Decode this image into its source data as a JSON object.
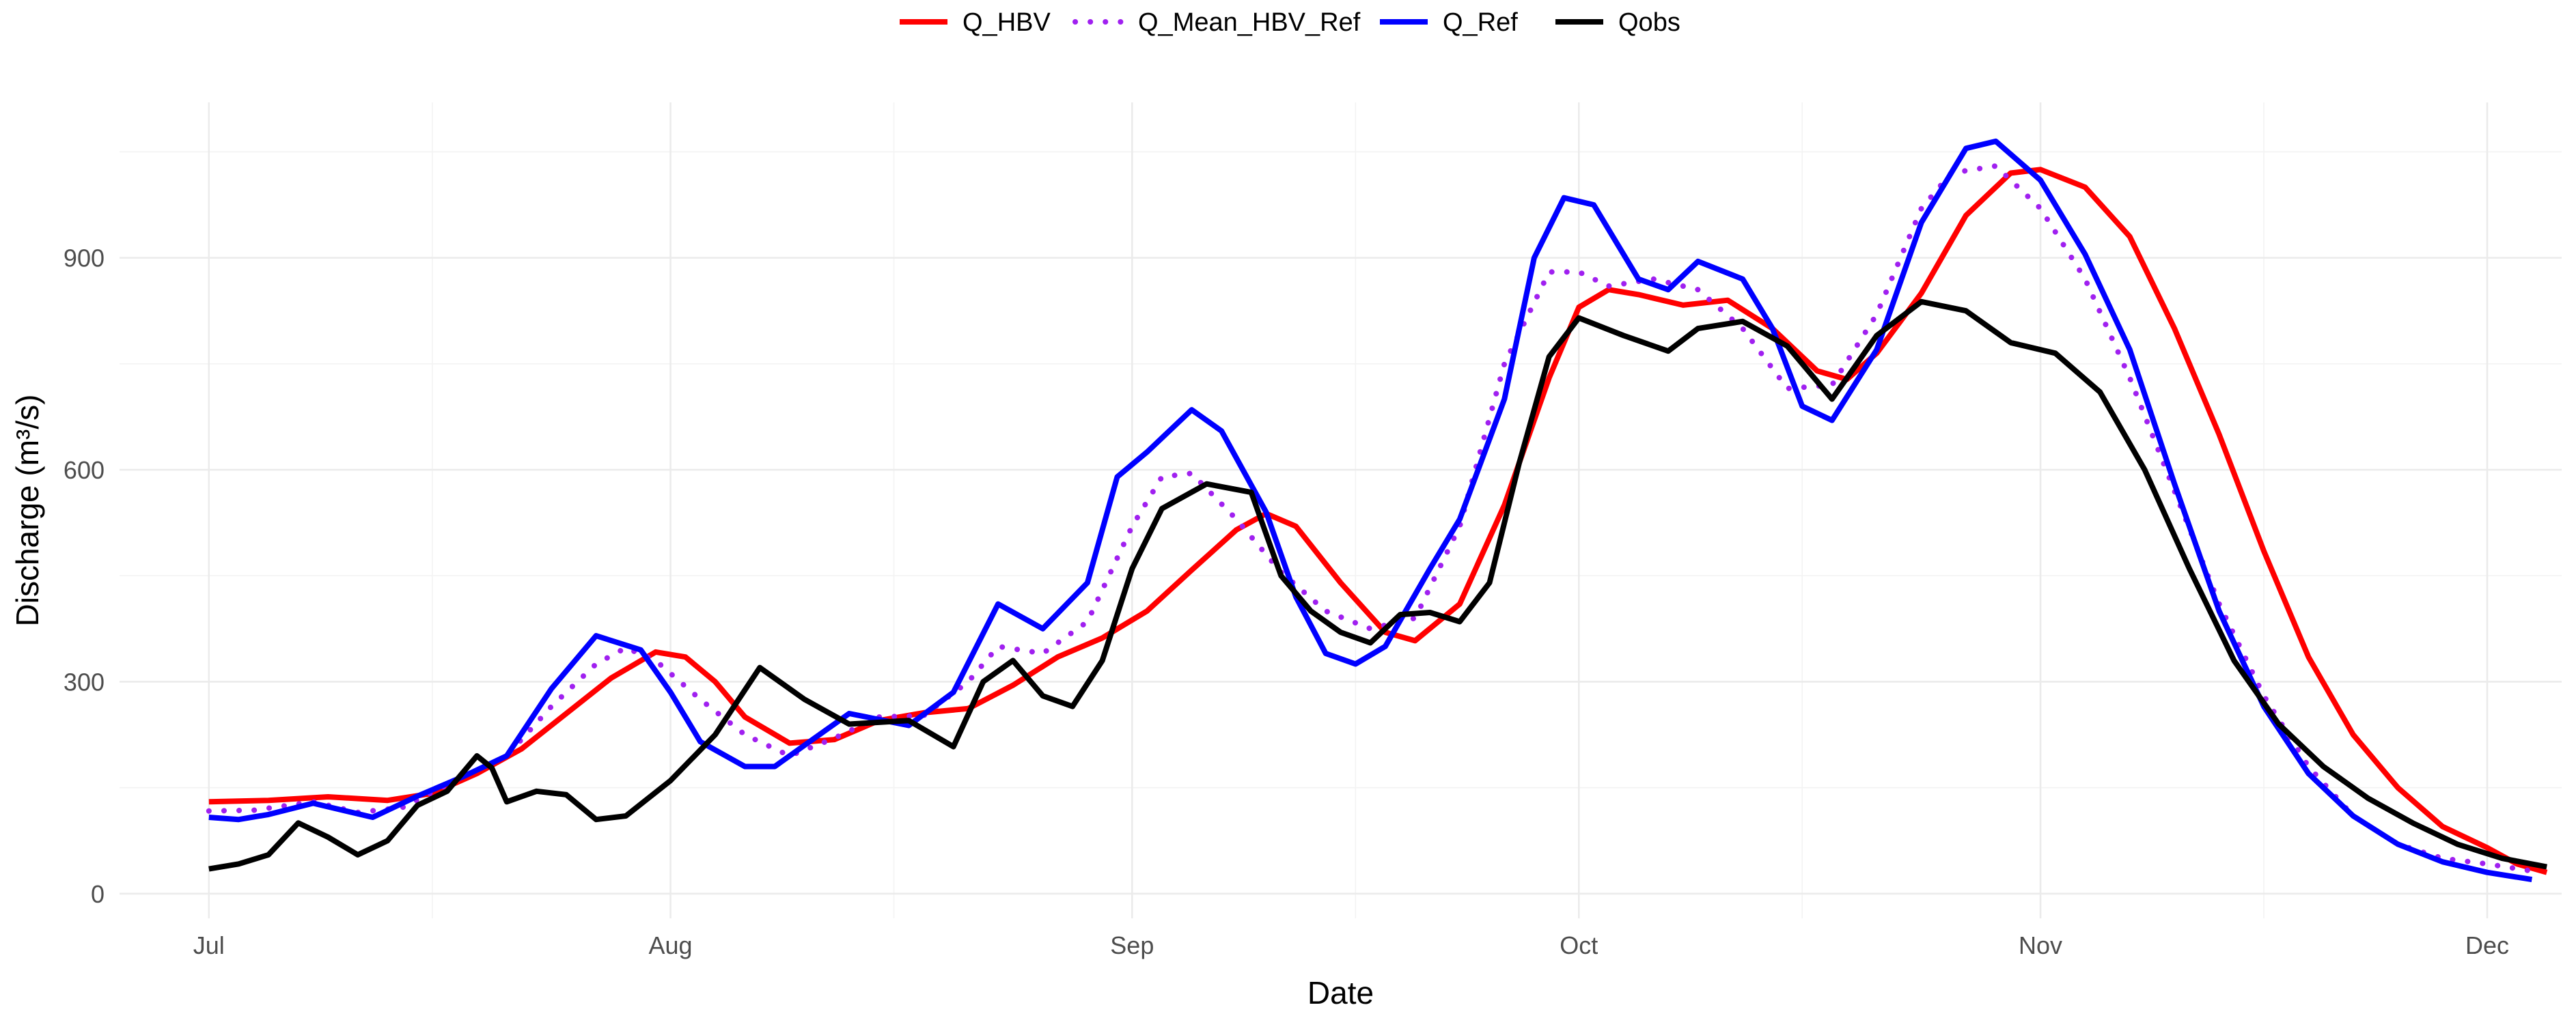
{
  "chart_data": {
    "type": "line",
    "xlabel": "Date",
    "ylabel": "Discharge (m³/s)",
    "x_axis": {
      "kind": "date",
      "range": [
        "2023-06-25",
        "2023-12-06"
      ],
      "ticks": [
        {
          "date": "2023-07-01",
          "label": "Jul"
        },
        {
          "date": "2023-08-01",
          "label": "Aug"
        },
        {
          "date": "2023-09-01",
          "label": "Sep"
        },
        {
          "date": "2023-10-01",
          "label": "Oct"
        },
        {
          "date": "2023-11-01",
          "label": "Nov"
        },
        {
          "date": "2023-12-01",
          "label": "Dec"
        }
      ],
      "minor_ticks": [
        "2023-07-16",
        "2023-08-16",
        "2023-09-16",
        "2023-10-16",
        "2023-11-16"
      ]
    },
    "y_axis": {
      "range": [
        -35,
        1120
      ],
      "ticks": [
        0,
        300,
        600,
        900
      ],
      "minor_ticks": [
        150,
        450,
        750,
        1050
      ]
    },
    "grid": true,
    "legend_position": "top",
    "series": [
      {
        "name": "Q_HBV",
        "color": "#ff0000",
        "style": "solid",
        "points": [
          [
            "2023-07-01",
            130
          ],
          [
            "2023-07-05",
            132
          ],
          [
            "2023-07-09",
            137
          ],
          [
            "2023-07-13",
            132
          ],
          [
            "2023-07-16",
            142
          ],
          [
            "2023-07-19",
            170
          ],
          [
            "2023-07-22",
            205
          ],
          [
            "2023-07-25",
            255
          ],
          [
            "2023-07-28",
            305
          ],
          [
            "2023-07-31",
            342
          ],
          [
            "2023-08-02",
            335
          ],
          [
            "2023-08-04",
            300
          ],
          [
            "2023-08-06",
            250
          ],
          [
            "2023-08-09",
            213
          ],
          [
            "2023-08-12",
            218
          ],
          [
            "2023-08-15",
            245
          ],
          [
            "2023-08-18",
            256
          ],
          [
            "2023-08-21",
            262
          ],
          [
            "2023-08-24",
            295
          ],
          [
            "2023-08-27",
            335
          ],
          [
            "2023-08-30",
            362
          ],
          [
            "2023-09-02",
            400
          ],
          [
            "2023-09-05",
            458
          ],
          [
            "2023-09-08",
            515
          ],
          [
            "2023-09-10",
            538
          ],
          [
            "2023-09-12",
            520
          ],
          [
            "2023-09-15",
            440
          ],
          [
            "2023-09-18",
            370
          ],
          [
            "2023-09-20",
            358
          ],
          [
            "2023-09-23",
            410
          ],
          [
            "2023-09-26",
            550
          ],
          [
            "2023-09-29",
            730
          ],
          [
            "2023-10-01",
            830
          ],
          [
            "2023-10-03",
            855
          ],
          [
            "2023-10-05",
            848
          ],
          [
            "2023-10-08",
            833
          ],
          [
            "2023-10-11",
            840
          ],
          [
            "2023-10-14",
            800
          ],
          [
            "2023-10-17",
            740
          ],
          [
            "2023-10-19",
            728
          ],
          [
            "2023-10-21",
            765
          ],
          [
            "2023-10-24",
            850
          ],
          [
            "2023-10-27",
            960
          ],
          [
            "2023-10-30",
            1020
          ],
          [
            "2023-11-01",
            1025
          ],
          [
            "2023-11-04",
            1000
          ],
          [
            "2023-11-07",
            930
          ],
          [
            "2023-11-10",
            800
          ],
          [
            "2023-11-13",
            650
          ],
          [
            "2023-11-16",
            485
          ],
          [
            "2023-11-19",
            335
          ],
          [
            "2023-11-22",
            225
          ],
          [
            "2023-11-25",
            150
          ],
          [
            "2023-11-28",
            95
          ],
          [
            "2023-12-01",
            65
          ],
          [
            "2023-12-03",
            42
          ],
          [
            "2023-12-05",
            30
          ]
        ]
      },
      {
        "name": "Q_Mean_HBV_Ref",
        "color": "#a020f0",
        "style": "dotted",
        "points": [
          [
            "2023-07-01",
            117
          ],
          [
            "2023-07-04",
            118
          ],
          [
            "2023-07-08",
            130
          ],
          [
            "2023-07-11",
            115
          ],
          [
            "2023-07-14",
            122
          ],
          [
            "2023-07-18",
            165
          ],
          [
            "2023-07-21",
            195
          ],
          [
            "2023-07-24",
            265
          ],
          [
            "2023-07-27",
            325
          ],
          [
            "2023-07-29",
            348
          ],
          [
            "2023-07-31",
            330
          ],
          [
            "2023-08-03",
            275
          ],
          [
            "2023-08-06",
            225
          ],
          [
            "2023-08-09",
            195
          ],
          [
            "2023-08-12",
            220
          ],
          [
            "2023-08-15",
            250
          ],
          [
            "2023-08-18",
            252
          ],
          [
            "2023-08-21",
            300
          ],
          [
            "2023-08-23",
            350
          ],
          [
            "2023-08-26",
            340
          ],
          [
            "2023-08-29",
            385
          ],
          [
            "2023-09-01",
            520
          ],
          [
            "2023-09-03",
            590
          ],
          [
            "2023-09-05",
            595
          ],
          [
            "2023-09-08",
            530
          ],
          [
            "2023-09-11",
            455
          ],
          [
            "2023-09-14",
            400
          ],
          [
            "2023-09-17",
            375
          ],
          [
            "2023-09-20",
            390
          ],
          [
            "2023-09-23",
            520
          ],
          [
            "2023-09-26",
            750
          ],
          [
            "2023-09-29",
            880
          ],
          [
            "2023-10-01",
            880
          ],
          [
            "2023-10-03",
            860
          ],
          [
            "2023-10-06",
            870
          ],
          [
            "2023-10-09",
            855
          ],
          [
            "2023-10-12",
            800
          ],
          [
            "2023-10-15",
            715
          ],
          [
            "2023-10-18",
            720
          ],
          [
            "2023-10-21",
            820
          ],
          [
            "2023-10-24",
            970
          ],
          [
            "2023-10-26",
            1020
          ],
          [
            "2023-10-29",
            1030
          ],
          [
            "2023-11-01",
            970
          ],
          [
            "2023-11-04",
            870
          ],
          [
            "2023-11-07",
            730
          ],
          [
            "2023-11-10",
            570
          ],
          [
            "2023-11-13",
            410
          ],
          [
            "2023-11-16",
            280
          ],
          [
            "2023-11-19",
            180
          ],
          [
            "2023-11-22",
            110
          ],
          [
            "2023-11-25",
            70
          ],
          [
            "2023-11-28",
            50
          ],
          [
            "2023-12-01",
            42
          ],
          [
            "2023-12-04",
            32
          ]
        ]
      },
      {
        "name": "Q_Ref",
        "color": "#0000ff",
        "style": "solid",
        "points": [
          [
            "2023-07-01",
            108
          ],
          [
            "2023-07-03",
            105
          ],
          [
            "2023-07-05",
            112
          ],
          [
            "2023-07-08",
            128
          ],
          [
            "2023-07-12",
            108
          ],
          [
            "2023-07-15",
            138
          ],
          [
            "2023-07-18",
            165
          ],
          [
            "2023-07-21",
            195
          ],
          [
            "2023-07-24",
            290
          ],
          [
            "2023-07-27",
            365
          ],
          [
            "2023-07-30",
            345
          ],
          [
            "2023-08-01",
            285
          ],
          [
            "2023-08-03",
            215
          ],
          [
            "2023-08-06",
            180
          ],
          [
            "2023-08-08",
            180
          ],
          [
            "2023-08-10",
            210
          ],
          [
            "2023-08-13",
            255
          ],
          [
            "2023-08-17",
            238
          ],
          [
            "2023-08-20",
            285
          ],
          [
            "2023-08-23",
            410
          ],
          [
            "2023-08-26",
            375
          ],
          [
            "2023-08-29",
            440
          ],
          [
            "2023-08-31",
            590
          ],
          [
            "2023-09-02",
            625
          ],
          [
            "2023-09-05",
            685
          ],
          [
            "2023-09-07",
            655
          ],
          [
            "2023-09-10",
            540
          ],
          [
            "2023-09-12",
            420
          ],
          [
            "2023-09-14",
            340
          ],
          [
            "2023-09-16",
            325
          ],
          [
            "2023-09-18",
            350
          ],
          [
            "2023-09-21",
            460
          ],
          [
            "2023-09-23",
            530
          ],
          [
            "2023-09-26",
            700
          ],
          [
            "2023-09-28",
            900
          ],
          [
            "2023-09-30",
            985
          ],
          [
            "2023-10-02",
            975
          ],
          [
            "2023-10-05",
            870
          ],
          [
            "2023-10-07",
            855
          ],
          [
            "2023-10-09",
            895
          ],
          [
            "2023-10-12",
            870
          ],
          [
            "2023-10-14",
            800
          ],
          [
            "2023-10-16",
            690
          ],
          [
            "2023-10-18",
            670
          ],
          [
            "2023-10-21",
            770
          ],
          [
            "2023-10-24",
            950
          ],
          [
            "2023-10-27",
            1055
          ],
          [
            "2023-10-29",
            1065
          ],
          [
            "2023-11-01",
            1010
          ],
          [
            "2023-11-04",
            905
          ],
          [
            "2023-11-07",
            770
          ],
          [
            "2023-11-10",
            580
          ],
          [
            "2023-11-13",
            400
          ],
          [
            "2023-11-16",
            265
          ],
          [
            "2023-11-19",
            170
          ],
          [
            "2023-11-22",
            110
          ],
          [
            "2023-11-25",
            70
          ],
          [
            "2023-11-28",
            45
          ],
          [
            "2023-12-01",
            30
          ],
          [
            "2023-12-04",
            20
          ]
        ]
      },
      {
        "name": "Qobs",
        "color": "#000000",
        "style": "solid",
        "points": [
          [
            "2023-07-01",
            35
          ],
          [
            "2023-07-03",
            42
          ],
          [
            "2023-07-05",
            55
          ],
          [
            "2023-07-07",
            100
          ],
          [
            "2023-07-09",
            80
          ],
          [
            "2023-07-11",
            55
          ],
          [
            "2023-07-13",
            75
          ],
          [
            "2023-07-15",
            125
          ],
          [
            "2023-07-17",
            145
          ],
          [
            "2023-07-19",
            195
          ],
          [
            "2023-07-20",
            178
          ],
          [
            "2023-07-21",
            130
          ],
          [
            "2023-07-23",
            145
          ],
          [
            "2023-07-25",
            140
          ],
          [
            "2023-07-27",
            105
          ],
          [
            "2023-07-29",
            110
          ],
          [
            "2023-08-01",
            160
          ],
          [
            "2023-08-04",
            225
          ],
          [
            "2023-08-07",
            320
          ],
          [
            "2023-08-10",
            275
          ],
          [
            "2023-08-13",
            240
          ],
          [
            "2023-08-17",
            245
          ],
          [
            "2023-08-20",
            208
          ],
          [
            "2023-08-22",
            300
          ],
          [
            "2023-08-24",
            330
          ],
          [
            "2023-08-26",
            280
          ],
          [
            "2023-08-28",
            265
          ],
          [
            "2023-08-30",
            330
          ],
          [
            "2023-09-01",
            460
          ],
          [
            "2023-09-03",
            545
          ],
          [
            "2023-09-06",
            580
          ],
          [
            "2023-09-09",
            568
          ],
          [
            "2023-09-11",
            450
          ],
          [
            "2023-09-13",
            400
          ],
          [
            "2023-09-15",
            370
          ],
          [
            "2023-09-17",
            355
          ],
          [
            "2023-09-19",
            395
          ],
          [
            "2023-09-21",
            398
          ],
          [
            "2023-09-23",
            385
          ],
          [
            "2023-09-25",
            440
          ],
          [
            "2023-09-27",
            610
          ],
          [
            "2023-09-29",
            760
          ],
          [
            "2023-10-01",
            815
          ],
          [
            "2023-10-04",
            790
          ],
          [
            "2023-10-07",
            768
          ],
          [
            "2023-10-09",
            800
          ],
          [
            "2023-10-12",
            810
          ],
          [
            "2023-10-15",
            775
          ],
          [
            "2023-10-18",
            700
          ],
          [
            "2023-10-21",
            790
          ],
          [
            "2023-10-24",
            838
          ],
          [
            "2023-10-27",
            825
          ],
          [
            "2023-10-30",
            780
          ],
          [
            "2023-11-02",
            765
          ],
          [
            "2023-11-05",
            710
          ],
          [
            "2023-11-08",
            600
          ],
          [
            "2023-11-11",
            460
          ],
          [
            "2023-11-14",
            330
          ],
          [
            "2023-11-17",
            240
          ],
          [
            "2023-11-20",
            180
          ],
          [
            "2023-11-23",
            135
          ],
          [
            "2023-11-26",
            100
          ],
          [
            "2023-11-29",
            70
          ],
          [
            "2023-12-02",
            50
          ],
          [
            "2023-12-05",
            38
          ]
        ]
      }
    ]
  }
}
